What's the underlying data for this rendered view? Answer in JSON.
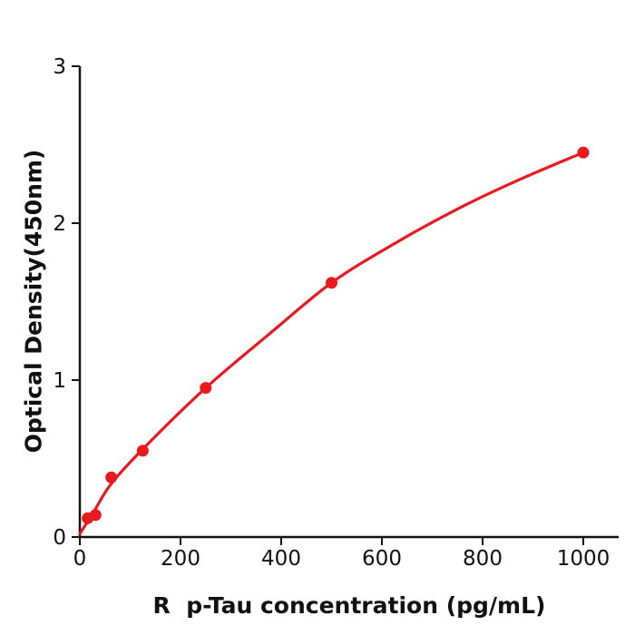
{
  "figure": {
    "background": "#ffffff",
    "description": "ELISA standard curve plot, red dose-response curve with data points"
  },
  "chart_data": {
    "type": "scatter",
    "title": "",
    "xlabel": "R  p-Tau concentration (pg/mL)",
    "ylabel": "Optical Density(450nm)",
    "xlim": [
      0,
      1070
    ],
    "ylim": [
      0,
      3
    ],
    "x_ticks": [
      0,
      200,
      400,
      600,
      800,
      1000
    ],
    "y_ticks": [
      0,
      1,
      2,
      3
    ],
    "grid": false,
    "legend": "none",
    "style": {
      "curve_color": "#e8191f",
      "point_color": "#e8191f",
      "axis_color": "#111111",
      "background": "#ffffff"
    },
    "series": [
      {
        "name": "standard-points",
        "kind": "scatter",
        "color": "#e8191f",
        "x": [
          15.6,
          31.2,
          62.5,
          125,
          250,
          500,
          1000
        ],
        "y": [
          0.12,
          0.14,
          0.38,
          0.55,
          0.95,
          1.62,
          2.45
        ]
      },
      {
        "name": "fit-curve",
        "kind": "line",
        "color": "#e8191f",
        "x": [
          0,
          15.6,
          31.2,
          62.5,
          125,
          250,
          375,
          500,
          625,
          750,
          875,
          1000
        ],
        "y": [
          0.02,
          0.1,
          0.18,
          0.34,
          0.56,
          0.95,
          1.29,
          1.62,
          1.87,
          2.09,
          2.28,
          2.45
        ]
      }
    ]
  }
}
